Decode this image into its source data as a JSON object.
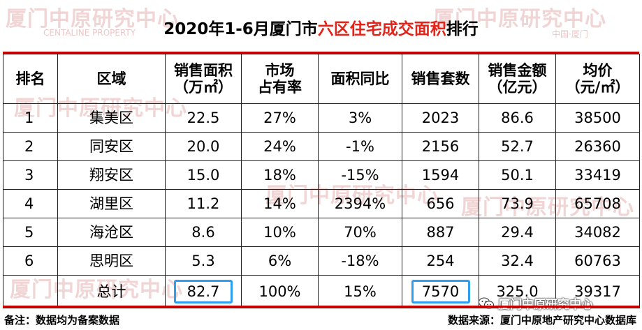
{
  "watermark": {
    "brand": "厦门中原研究中心",
    "brand_en": "CENTALINE PROPERTY",
    "city": "中国·厦门"
  },
  "title": {
    "prefix": "2020年1-6月厦门市",
    "highlight": "六区住宅成交面积",
    "suffix": "排行"
  },
  "table": {
    "headers": [
      [
        "排名"
      ],
      [
        "区域"
      ],
      [
        "销售面积",
        "（万㎡）"
      ],
      [
        "市场",
        "占有率"
      ],
      [
        "面积同比"
      ],
      [
        "销售套数"
      ],
      [
        "销售金额",
        "（亿元）"
      ],
      [
        "均价",
        "（元/㎡）"
      ]
    ],
    "rows": [
      [
        "1",
        "集美区",
        "22.5",
        "27%",
        "3%",
        "2023",
        "86.6",
        "38500"
      ],
      [
        "2",
        "同安区",
        "20.0",
        "24%",
        "-1%",
        "2156",
        "52.7",
        "26360"
      ],
      [
        "3",
        "翔安区",
        "15.0",
        "18%",
        "-15%",
        "1594",
        "50.1",
        "33419"
      ],
      [
        "4",
        "湖里区",
        "11.2",
        "14%",
        "2394%",
        "656",
        "73.9",
        "65708"
      ],
      [
        "5",
        "海沧区",
        "8.6",
        "10%",
        "70%",
        "887",
        "29.4",
        "34082"
      ],
      [
        "6",
        "思明区",
        "5.3",
        "6%",
        "-18%",
        "254",
        "32.4",
        "60763"
      ]
    ],
    "total": [
      "",
      "总计",
      "82.7",
      "100%",
      "15%",
      "7570",
      "325.0",
      "39317"
    ]
  },
  "footer": {
    "note": "备注：数据均为备案数据",
    "source": "数据来源：厦门中原地产研究中心数据库",
    "wechat_label": "厦门中原研究中心"
  },
  "colors": {
    "title_highlight": "#e2231a",
    "rule_lines": "#c40000",
    "highlight_box": "#2e9ff0"
  }
}
